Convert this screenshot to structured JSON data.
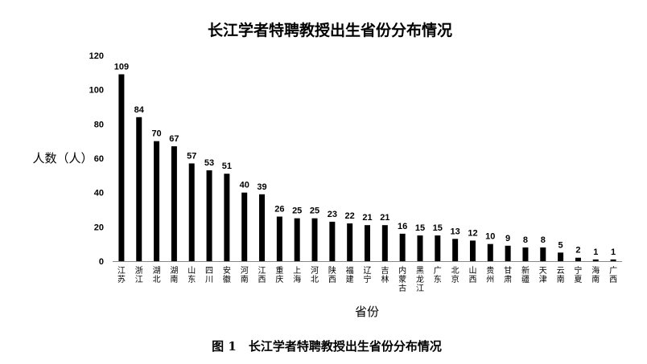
{
  "caption": "图 1　长江学者特聘教授出生省份分布情况",
  "chart_data": {
    "type": "bar",
    "title": "长江学者特聘教授出生省份分布情况",
    "xlabel": "省份",
    "ylabel": "人数（人）",
    "ylim": [
      0,
      120
    ],
    "yticks": [
      0,
      20,
      40,
      60,
      80,
      100,
      120
    ],
    "grid": false,
    "legend": "none",
    "bar_color": "#000000",
    "categories": [
      "江苏",
      "浙江",
      "湖北",
      "湖南",
      "山东",
      "四川",
      "安徽",
      "河南",
      "江西",
      "重庆",
      "上海",
      "河北",
      "陕西",
      "福建",
      "辽宁",
      "吉林",
      "内蒙古",
      "黑龙江",
      "广东",
      "北京",
      "山西",
      "贵州",
      "甘肃",
      "新疆",
      "天津",
      "云南",
      "宁夏",
      "海南",
      "广西"
    ],
    "values": [
      109,
      84,
      70,
      67,
      57,
      53,
      51,
      40,
      39,
      26,
      25,
      25,
      23,
      22,
      21,
      21,
      16,
      15,
      15,
      13,
      12,
      10,
      9,
      8,
      8,
      5,
      2,
      1,
      1
    ]
  }
}
